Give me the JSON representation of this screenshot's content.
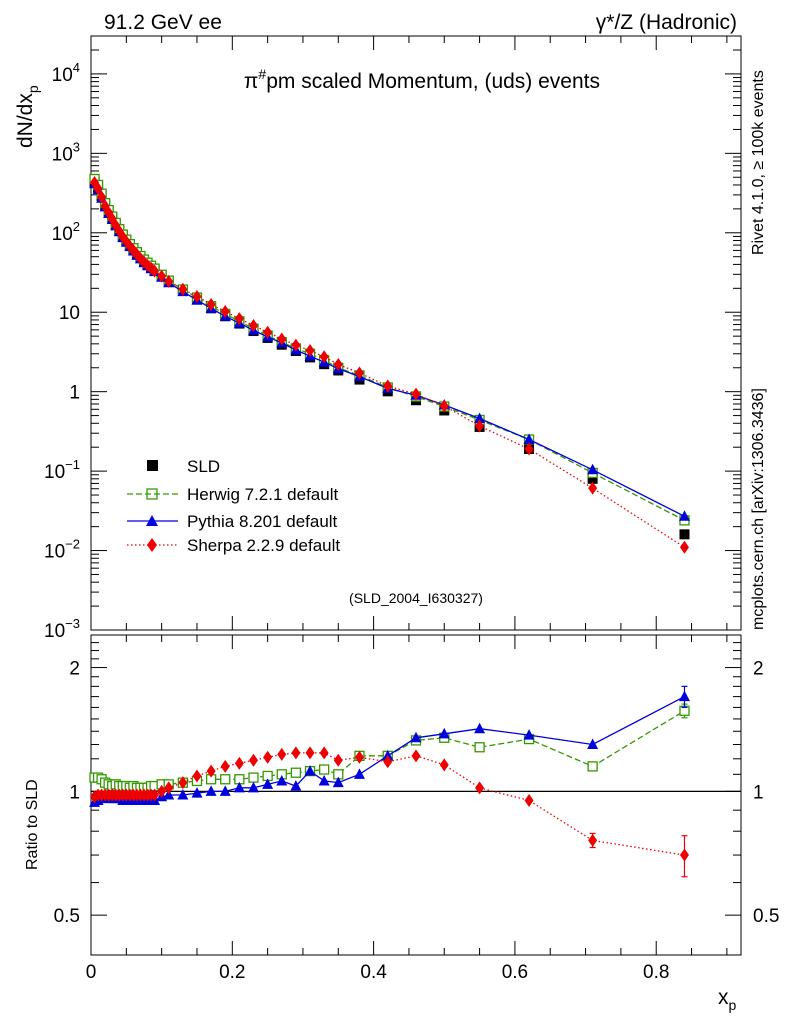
{
  "header": {
    "left_label": "91.2 GeV ee",
    "right_label": "γ*/Z (Hadronic)"
  },
  "side_labels": {
    "rivet": "Rivet 4.1.0, ≥ 100k events",
    "mcplots": "mcplots.cern.ch [arXiv:1306.3436]"
  },
  "colors": {
    "sld": "#000000",
    "herwig": "#339900",
    "pythia": "#0000dd",
    "sherpa": "#ee0000",
    "watermark": "#999999"
  },
  "chart_data": [
    {
      "id": "main",
      "type": "scatter",
      "scale": "log",
      "title": "π#pm scaled Momentum, (uds) events",
      "title_prefix": "π",
      "title_superscript": "#",
      "title_rest": "pm scaled Momentum, (uds) events",
      "xlabel": "x",
      "xlabel_sub": "p",
      "ylabel": "dN/dx",
      "ylabel_sub": "p",
      "xlim": [
        0,
        0.92
      ],
      "ylim": [
        0.001,
        30000
      ],
      "ytick_labels": [
        {
          "value": 0.001,
          "base": "10",
          "exp": "−3"
        },
        {
          "value": 0.01,
          "base": "10",
          "exp": "−2"
        },
        {
          "value": 0.1,
          "base": "10",
          "exp": "−1"
        },
        {
          "value": 1,
          "base": "1",
          "exp": ""
        },
        {
          "value": 10,
          "base": "10",
          "exp": ""
        },
        {
          "value": 100,
          "base": "10",
          "exp": "2"
        },
        {
          "value": 1000,
          "base": "10",
          "exp": "3"
        },
        {
          "value": 10000,
          "base": "10",
          "exp": "4"
        }
      ],
      "watermark": "(SLD_2004_I630327)",
      "legend": {
        "position": "bottom-left",
        "entries": [
          "SLD",
          "Herwig 7.2.1 default",
          "Pythia 8.201 default",
          "Sherpa 2.2.9 default"
        ]
      },
      "x": [
        0.005,
        0.01,
        0.015,
        0.02,
        0.025,
        0.03,
        0.035,
        0.04,
        0.045,
        0.05,
        0.055,
        0.06,
        0.065,
        0.07,
        0.075,
        0.08,
        0.085,
        0.09,
        0.1,
        0.11,
        0.13,
        0.15,
        0.17,
        0.19,
        0.21,
        0.23,
        0.25,
        0.27,
        0.29,
        0.31,
        0.33,
        0.35,
        0.38,
        0.42,
        0.46,
        0.5,
        0.55,
        0.62,
        0.71,
        0.84
      ],
      "series": [
        {
          "name": "SLD",
          "values": [
            440,
            370,
            290,
            225,
            185,
            155,
            128,
            108,
            92,
            80,
            70,
            62,
            55,
            49,
            44,
            40,
            37,
            34,
            28.5,
            24,
            18.5,
            14.4,
            11.2,
            8.9,
            7.2,
            5.8,
            4.75,
            3.9,
            3.25,
            2.7,
            2.22,
            1.85,
            1.42,
            1.01,
            0.78,
            0.58,
            0.36,
            0.19,
            0.08,
            0.016
          ]
        },
        {
          "name": "Herwig 7.2.1 default",
          "values": [
            475,
            400,
            310,
            236,
            193,
            160,
            133,
            111,
            95,
            82,
            72,
            64,
            57,
            51,
            46,
            42,
            38.5,
            35.4,
            29.6,
            25,
            19.3,
            15.3,
            11.9,
            9.5,
            7.7,
            6.2,
            5.1,
            4.2,
            3.5,
            3.0,
            2.5,
            2.0,
            1.6,
            1.13,
            0.87,
            0.65,
            0.44,
            0.25,
            0.095,
            0.024
          ]
        },
        {
          "name": "Pythia 8.201 default",
          "values": [
            415,
            350,
            272,
            212,
            175,
            147,
            122,
            103,
            87,
            76,
            67,
            59,
            52,
            47,
            42,
            38.5,
            35.3,
            32.5,
            27.6,
            23.5,
            18.2,
            14.2,
            11.2,
            8.9,
            7.3,
            5.9,
            4.9,
            4.1,
            3.35,
            2.8,
            2.35,
            1.95,
            1.55,
            1.1,
            0.9,
            0.68,
            0.46,
            0.25,
            0.104,
            0.027
          ]
        },
        {
          "name": "Sherpa 2.2.9 default",
          "values": [
            430,
            360,
            282,
            218,
            180,
            150,
            124,
            105,
            89,
            78,
            68,
            60,
            53.5,
            47.5,
            43,
            39,
            36,
            33,
            28.5,
            24.5,
            19.5,
            15.8,
            12.5,
            10.2,
            8.3,
            6.8,
            5.6,
            4.6,
            3.85,
            3.3,
            2.75,
            2.2,
            1.72,
            1.18,
            0.93,
            0.66,
            0.37,
            0.19,
            0.061,
            0.011
          ]
        }
      ]
    },
    {
      "id": "ratio",
      "type": "line",
      "scale": "log",
      "ylabel": "Ratio to SLD",
      "xlim": [
        0,
        0.92
      ],
      "ylim": [
        0.4,
        2.4
      ],
      "xtick_labels": [
        {
          "value": 0,
          "label": "0"
        },
        {
          "value": 0.2,
          "label": "0.2"
        },
        {
          "value": 0.4,
          "label": "0.4"
        },
        {
          "value": 0.6,
          "label": "0.6"
        },
        {
          "value": 0.8,
          "label": "0.8"
        }
      ],
      "ytick_labels": [
        {
          "value": 0.5,
          "label": "0.5"
        },
        {
          "value": 1,
          "label": "1"
        },
        {
          "value": 2,
          "label": "2"
        }
      ],
      "x": [
        0.005,
        0.01,
        0.015,
        0.02,
        0.025,
        0.03,
        0.035,
        0.04,
        0.045,
        0.05,
        0.055,
        0.06,
        0.065,
        0.07,
        0.075,
        0.08,
        0.085,
        0.09,
        0.1,
        0.11,
        0.13,
        0.15,
        0.17,
        0.19,
        0.21,
        0.23,
        0.25,
        0.27,
        0.29,
        0.31,
        0.33,
        0.35,
        0.38,
        0.42,
        0.46,
        0.5,
        0.55,
        0.62,
        0.71,
        0.84
      ],
      "series": [
        {
          "name": "Herwig 7.2.1 default",
          "values": [
            1.08,
            1.08,
            1.07,
            1.05,
            1.04,
            1.03,
            1.04,
            1.03,
            1.03,
            1.03,
            1.02,
            1.03,
            1.02,
            1.02,
            1.02,
            1.02,
            1.03,
            1.03,
            1.04,
            1.04,
            1.05,
            1.06,
            1.07,
            1.07,
            1.07,
            1.08,
            1.09,
            1.1,
            1.11,
            1.12,
            1.13,
            1.1,
            1.22,
            1.22,
            1.33,
            1.35,
            1.28,
            1.34,
            1.15,
            1.57
          ],
          "errors": [
            0.01,
            0.01,
            0.01,
            0.01,
            0.01,
            0.01,
            0.01,
            0.01,
            0.01,
            0.01,
            0.01,
            0.01,
            0.01,
            0.01,
            0.01,
            0.01,
            0.01,
            0.01,
            0.01,
            0.01,
            0.01,
            0.01,
            0.01,
            0.01,
            0.01,
            0.01,
            0.01,
            0.01,
            0.01,
            0.01,
            0.01,
            0.01,
            0.015,
            0.015,
            0.02,
            0.02,
            0.02,
            0.025,
            0.03,
            0.06
          ]
        },
        {
          "name": "Pythia 8.201 default",
          "values": [
            0.94,
            0.95,
            0.97,
            0.96,
            0.97,
            0.96,
            0.96,
            0.96,
            0.95,
            0.95,
            0.95,
            0.95,
            0.95,
            0.96,
            0.95,
            0.96,
            0.95,
            0.95,
            0.97,
            0.98,
            0.98,
            0.99,
            1.0,
            1.0,
            1.02,
            1.02,
            1.04,
            1.06,
            1.03,
            1.12,
            1.06,
            1.05,
            1.1,
            1.22,
            1.35,
            1.38,
            1.42,
            1.37,
            1.3,
            1.7
          ],
          "errors": [
            0.01,
            0.01,
            0.01,
            0.01,
            0.01,
            0.01,
            0.01,
            0.01,
            0.01,
            0.01,
            0.01,
            0.01,
            0.01,
            0.01,
            0.01,
            0.01,
            0.01,
            0.01,
            0.01,
            0.01,
            0.01,
            0.01,
            0.01,
            0.01,
            0.01,
            0.01,
            0.01,
            0.01,
            0.01,
            0.01,
            0.01,
            0.01,
            0.015,
            0.015,
            0.02,
            0.02,
            0.02,
            0.025,
            0.04,
            0.1
          ]
        },
        {
          "name": "Sherpa 2.2.9 default",
          "values": [
            0.97,
            0.98,
            0.98,
            0.98,
            0.98,
            0.98,
            0.98,
            0.98,
            0.98,
            0.98,
            0.98,
            0.98,
            0.98,
            0.98,
            0.98,
            0.98,
            0.98,
            0.98,
            1.0,
            1.02,
            1.05,
            1.09,
            1.12,
            1.15,
            1.17,
            1.19,
            1.21,
            1.23,
            1.24,
            1.24,
            1.24,
            1.19,
            1.21,
            1.18,
            1.22,
            1.16,
            1.02,
            0.95,
            0.76,
            0.7
          ],
          "errors": [
            0.01,
            0.01,
            0.01,
            0.01,
            0.01,
            0.01,
            0.01,
            0.01,
            0.01,
            0.01,
            0.01,
            0.01,
            0.01,
            0.01,
            0.01,
            0.01,
            0.01,
            0.01,
            0.01,
            0.01,
            0.01,
            0.01,
            0.01,
            0.01,
            0.01,
            0.01,
            0.01,
            0.01,
            0.01,
            0.01,
            0.01,
            0.01,
            0.015,
            0.015,
            0.02,
            0.02,
            0.02,
            0.025,
            0.03,
            0.08
          ]
        }
      ]
    }
  ]
}
